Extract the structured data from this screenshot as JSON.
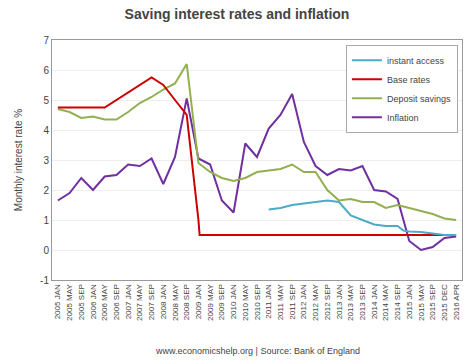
{
  "chart_data": {
    "type": "line",
    "title": "Saving interest rates and inflation",
    "y_label": "Monthly interest rate %",
    "footer": "www.economicshelp.org | Source: Bank of England",
    "xlim": [
      -0.5,
      34.5
    ],
    "xticks": [
      {
        "value": 0,
        "label": "2005 JAN"
      },
      {
        "value": 1,
        "label": "2005 MAY"
      },
      {
        "value": 2,
        "label": "2005 SEP"
      },
      {
        "value": 3,
        "label": "2006 JAN"
      },
      {
        "value": 4,
        "label": "2006 MAY"
      },
      {
        "value": 5,
        "label": "2006 SEP"
      },
      {
        "value": 6,
        "label": "2007 JAN"
      },
      {
        "value": 7,
        "label": "2007 MAY"
      },
      {
        "value": 8,
        "label": "2007 SEP"
      },
      {
        "value": 9,
        "label": "2008 JAN"
      },
      {
        "value": 10,
        "label": "2008 MAY"
      },
      {
        "value": 11,
        "label": "2008 SEP"
      },
      {
        "value": 12,
        "label": "2009 JAN"
      },
      {
        "value": 13,
        "label": "2009 MAY"
      },
      {
        "value": 14,
        "label": "2009 SEP"
      },
      {
        "value": 15,
        "label": "2010 JAN"
      },
      {
        "value": 16,
        "label": "2010 MAY"
      },
      {
        "value": 17,
        "label": "2010 SEP"
      },
      {
        "value": 18,
        "label": "2011 JAN"
      },
      {
        "value": 19,
        "label": "2011 MAY"
      },
      {
        "value": 20,
        "label": "2011 SEP"
      },
      {
        "value": 21,
        "label": "2012 JAN"
      },
      {
        "value": 22,
        "label": "2012 MAY"
      },
      {
        "value": 23,
        "label": "2012 SEP"
      },
      {
        "value": 24,
        "label": "2013 JAN"
      },
      {
        "value": 25,
        "label": "2013 MAY"
      },
      {
        "value": 26,
        "label": "2013 SEP"
      },
      {
        "value": 27,
        "label": "2014 JAN"
      },
      {
        "value": 28,
        "label": "2014 MAY"
      },
      {
        "value": 29,
        "label": "2014 SEP"
      },
      {
        "value": 30,
        "label": "2015 JAN"
      },
      {
        "value": 31,
        "label": "2015 MAY"
      },
      {
        "value": 32,
        "label": "2015 SEP"
      },
      {
        "value": 33,
        "label": "2015 DEC"
      },
      {
        "value": 34,
        "label": "2016 APR"
      }
    ],
    "ylim": [
      -1,
      7
    ],
    "yticks": [
      -1,
      0,
      1,
      2,
      3,
      4,
      5,
      6,
      7
    ],
    "grid": true,
    "legend": "upper right",
    "series": [
      {
        "name": "Inflation",
        "color": "#7030a0",
        "x": [
          0,
          1,
          2,
          3,
          4,
          5,
          6,
          7,
          8,
          9,
          10,
          11,
          12,
          13,
          14,
          15,
          16,
          17,
          18,
          19,
          20,
          21,
          22,
          23,
          24,
          25,
          26,
          27,
          28,
          29,
          30,
          31,
          32,
          33,
          34
        ],
        "values": [
          1.65,
          1.9,
          2.4,
          2.0,
          2.45,
          2.5,
          2.85,
          2.8,
          3.05,
          2.2,
          3.1,
          5.05,
          3.05,
          2.85,
          1.65,
          1.25,
          3.55,
          3.1,
          4.05,
          4.5,
          5.2,
          3.6,
          2.8,
          2.5,
          2.7,
          2.65,
          2.8,
          2.0,
          1.95,
          1.7,
          0.3,
          0.0,
          0.1,
          0.4,
          0.45
        ]
      },
      {
        "name": "Deposit savings",
        "color": "#92b050",
        "x": [
          0,
          1,
          2,
          3,
          4,
          5,
          6,
          7,
          8,
          9,
          10,
          11,
          12,
          13,
          14,
          15,
          16,
          17,
          18,
          19,
          20,
          21,
          22,
          23,
          24,
          25,
          26,
          27,
          28,
          29,
          30,
          31,
          32,
          33,
          34
        ],
        "values": [
          4.7,
          4.6,
          4.4,
          4.45,
          4.35,
          4.35,
          4.6,
          4.9,
          5.1,
          5.35,
          5.55,
          6.2,
          2.9,
          2.6,
          2.4,
          2.3,
          2.4,
          2.6,
          2.65,
          2.7,
          2.85,
          2.6,
          2.6,
          2.0,
          1.65,
          1.7,
          1.6,
          1.6,
          1.4,
          1.5,
          1.4,
          1.3,
          1.2,
          1.05,
          1.0
        ]
      },
      {
        "name": "Base rates",
        "color": "#cc0000",
        "x": [
          0,
          4,
          8,
          9,
          10,
          11,
          12,
          12.1,
          34
        ],
        "values": [
          4.75,
          4.75,
          5.75,
          5.5,
          5.0,
          4.5,
          1.0,
          0.5,
          0.5
        ]
      },
      {
        "name": "instant access",
        "color": "#4bacc6",
        "x": [
          18,
          19,
          20,
          21,
          22,
          23,
          24,
          25,
          26,
          27,
          28,
          29,
          29.5,
          30,
          31,
          32,
          33,
          34
        ],
        "values": [
          1.35,
          1.4,
          1.5,
          1.55,
          1.6,
          1.65,
          1.6,
          1.15,
          1.0,
          0.85,
          0.8,
          0.8,
          0.65,
          0.62,
          0.6,
          0.55,
          0.5,
          0.5
        ]
      }
    ]
  }
}
